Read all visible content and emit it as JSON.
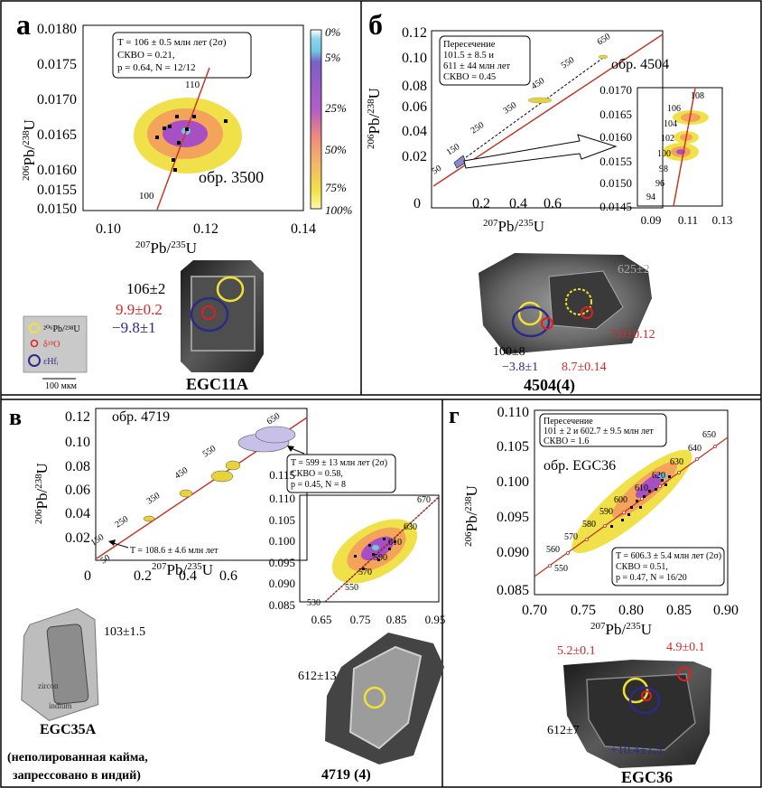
{
  "colors": {
    "concordia": "#c0392b",
    "density_outer": "#f0e14a",
    "density_mid": "#f3a35a",
    "density_inner": "#a84fc4",
    "density_core": "#6fc7e0",
    "ellipse_lilac": "#c9c0ea",
    "ellipse_yellow": "#e8d23a",
    "spot_u_pb": "#f1e135",
    "spot_o": "#e02020",
    "spot_hf": "#2b2a86",
    "value_red": "#d42a2a",
    "value_blue": "#2b2a86",
    "value_grey": "#a6a6a6"
  },
  "panels": {
    "a": {
      "letter": "а",
      "info": [
        "T = 106 ± 0.5 млн лет (2σ)",
        "СКВО = 0.21,",
        "p = 0.64, N = 12/12"
      ],
      "sample": "обр. 3500",
      "ylabel_sup": "206",
      "ylabel_main": "Pb/",
      "ylabel_sup2": "238",
      "ylabel_end": "U",
      "xlabel_sup": "207",
      "xlabel_main": "Pb/",
      "xlabel_sup2": "235",
      "xlabel_end": "U",
      "yticks": [
        "0.0180",
        "0.0175",
        "0.0170",
        "0.0165",
        "0.0160",
        "0.0155",
        "0.0150"
      ],
      "xticks": [
        "0.10",
        "0.12",
        "0.14"
      ],
      "age_labels": [
        "110",
        "100"
      ],
      "colorbar": [
        "0%",
        "5%",
        "25%",
        "50%",
        "75%",
        "100%"
      ],
      "legend": {
        "u_pb": "²⁰⁶Pb/²³⁸U",
        "o": "δ¹⁸O",
        "hf": "εHfᵢ",
        "scale": "100 мкм"
      },
      "grain": {
        "name": "EGC11A",
        "age": "106±2",
        "o": "9.9±0.2",
        "hf": "−9.8±1"
      }
    },
    "b": {
      "letter": "б",
      "info": [
        "Пересечение",
        "101.5 ± 8.5 и",
        "611 ± 44 млн лет",
        "СКВО = 0.45"
      ],
      "sample": "обр. 4504",
      "ylabel_sup": "206",
      "ylabel_main": "Pb/",
      "ylabel_sup2": "238",
      "ylabel_end": "U",
      "xlabel_sup": "207",
      "xlabel_main": "Pb/",
      "xlabel_sup2": "235",
      "xlabel_end": "U",
      "yticks": [
        "0.12",
        "0.10",
        "0.08",
        "0.06",
        "0.04",
        "0.02"
      ],
      "xticks": [
        "0",
        "0.2",
        "0.4",
        "0.6"
      ],
      "age_labels": [
        "650",
        "550",
        "450",
        "350",
        "250",
        "150",
        "50"
      ],
      "inset_yticks": [
        "0.0170",
        "0.0165",
        "0.0160",
        "0.0155",
        "0.0150",
        "0.0145"
      ],
      "inset_xticks": [
        "0.09",
        "0.11",
        "0.13"
      ],
      "inset_age_labels": [
        "108",
        "106",
        "104",
        "102",
        "100",
        "98",
        "96",
        "94"
      ],
      "grain": {
        "name": "4504(4)",
        "age": "100±8",
        "hf": "−3.8±1",
        "o1": "8.7±0.14",
        "o2": "7.0±0.12",
        "age_old": "625±2"
      }
    },
    "c": {
      "letter": "в",
      "sample": "обр. 4719",
      "lower_text": "T = 108.6 ± 4.6 млн лет",
      "info": [
        "T = 599 ± 13 млн лет (2σ)",
        "СКВО = 0.58,",
        "p = 0.45, N = 8"
      ],
      "ylabel_sup": "206",
      "ylabel_main": "Pb/",
      "ylabel_sup2": "238",
      "ylabel_end": "U",
      "xlabel_sup": "207",
      "xlabel_main": "Pb/",
      "xlabel_sup2": "235",
      "xlabel_end": "U",
      "yticks": [
        "0.12",
        "0.10",
        "0.08",
        "0.06",
        "0.04",
        "0.02"
      ],
      "xticks": [
        "0",
        "0.2",
        "0.4",
        "0.6"
      ],
      "age_labels": [
        "650",
        "550",
        "450",
        "350",
        "250",
        "150",
        "50"
      ],
      "inset_yticks": [
        "0.115",
        "0.110",
        "0.105",
        "0.100",
        "0.095",
        "0.090",
        "0.085"
      ],
      "inset_xticks": [
        "0.65",
        "0.75",
        "0.85",
        "0.95"
      ],
      "inset_age_labels": [
        "670",
        "630",
        "610",
        "590",
        "570",
        "550",
        "530"
      ],
      "grain1": {
        "name": "EGC35A",
        "age": "103±1.5",
        "note1": "(неполированная кайма,",
        "note2": "запрессовано в индий)",
        "text1": "zircon",
        "text2": "indium"
      },
      "grain2": {
        "name": "4719 (4)",
        "age": "612±13"
      }
    },
    "d": {
      "letter": "г",
      "info": [
        "Пересечение",
        "101 ± 2 и 602.7 ± 9.5 млн лет",
        "СКВО = 1.6"
      ],
      "sample": "обр. EGC36",
      "info2": [
        "T = 606.3 ± 5.4 млн лет (2σ)",
        "СКВО = 0.51,",
        "p = 0.47, N = 16/20"
      ],
      "ylabel_sup": "206",
      "ylabel_main": "Pb/",
      "ylabel_sup2": "238",
      "ylabel_end": "U",
      "xlabel_sup": "207",
      "xlabel_main": "Pb/",
      "xlabel_sup2": "235",
      "xlabel_end": "U",
      "yticks": [
        "0.110",
        "0.105",
        "0.100",
        "0.095",
        "0.090",
        "0.085"
      ],
      "xticks": [
        "0.70",
        "0.75",
        "0.80",
        "0.85",
        "0.90"
      ],
      "age_labels": [
        "650",
        "640",
        "630",
        "620",
        "610",
        "600",
        "590",
        "580",
        "570",
        "560",
        "550"
      ],
      "grain": {
        "name": "EGC36",
        "age": "612±7",
        "o1": "5.2±0.1",
        "o2": "4.9±0.1",
        "hf": "+10.4±1.5"
      }
    }
  }
}
